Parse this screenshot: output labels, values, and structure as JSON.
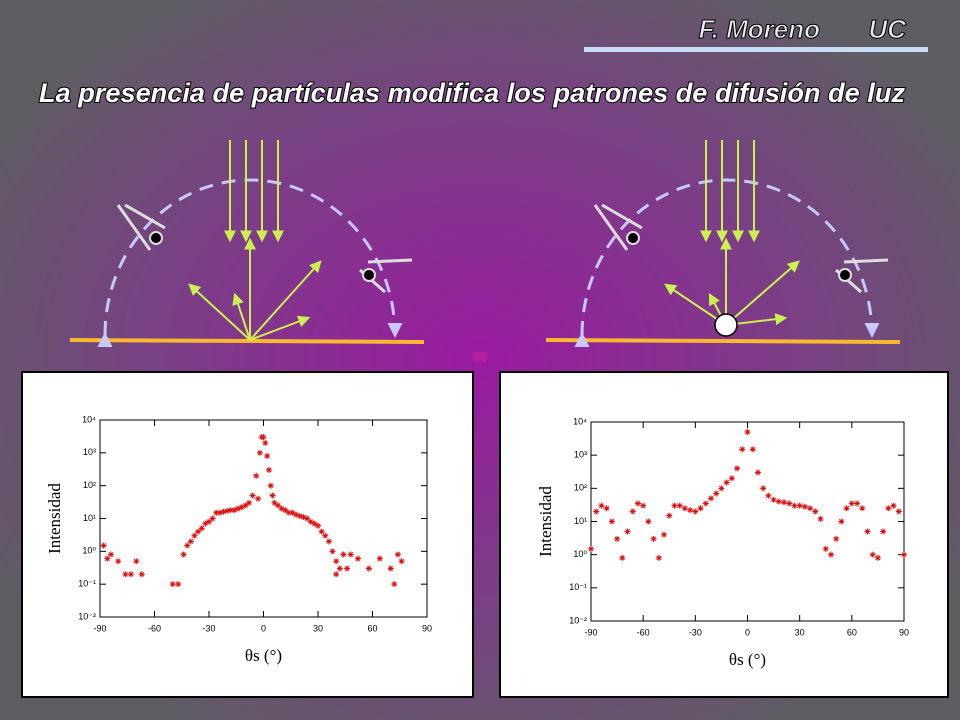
{
  "header": {
    "author": "F. Moreno",
    "institution": "UC",
    "title": "La presencia de partículas modifica los patrones de difusión de luz"
  },
  "chart_data": [
    {
      "type": "scatter",
      "ylabel": "Intensidad",
      "xlabel": "θs (°)",
      "color": "#e01010",
      "yscale": "log",
      "xlim": [
        -90,
        90
      ],
      "ylim": [
        0.01,
        10000
      ],
      "xticks": [
        -90,
        -60,
        -30,
        0,
        30,
        60,
        90
      ],
      "yticks": [
        {
          "value": 0.01,
          "label": "10⁻²"
        },
        {
          "value": 0.1,
          "label": "10⁻¹"
        },
        {
          "value": 1,
          "label": "10⁰"
        },
        {
          "value": 10,
          "label": "10¹"
        },
        {
          "value": 100,
          "label": "10²"
        },
        {
          "value": 1000,
          "label": "10³"
        },
        {
          "value": 10000,
          "label": "10⁴"
        }
      ],
      "x": [
        -88,
        -86,
        -84,
        -80,
        -76,
        -73,
        -70,
        -67,
        -50,
        -47,
        -44,
        -42,
        -40,
        -38,
        -36,
        -34,
        -32,
        -30,
        -28,
        -26,
        -24,
        -22,
        -20,
        -18,
        -16,
        -14,
        -12,
        -10,
        -8,
        -6,
        -4,
        -3,
        -2,
        -1,
        0,
        1,
        2,
        3,
        4,
        5,
        6,
        8,
        10,
        12,
        14,
        16,
        18,
        20,
        22,
        24,
        26,
        28,
        30,
        32,
        34,
        36,
        38,
        40,
        40,
        42,
        44,
        46,
        48,
        52,
        58,
        64,
        70,
        72,
        74,
        76
      ],
      "values": [
        1.5,
        0.6,
        0.8,
        0.5,
        0.2,
        0.2,
        0.5,
        0.2,
        0.1,
        0.1,
        0.8,
        1.5,
        2,
        3,
        4,
        5,
        7,
        8,
        10,
        15,
        15,
        16,
        17,
        18,
        18,
        20,
        22,
        25,
        30,
        50,
        200,
        40,
        1000,
        3000,
        3000,
        2000,
        800,
        300,
        100,
        50,
        30,
        25,
        20,
        18,
        15,
        15,
        13,
        12,
        11,
        10,
        8,
        7,
        6,
        4,
        3,
        2,
        1,
        0.5,
        0.2,
        0.3,
        0.8,
        0.3,
        0.8,
        0.6,
        0.3,
        0.6,
        0.3,
        0.1,
        0.8,
        0.5
      ]
    },
    {
      "type": "scatter",
      "ylabel": "Intensidad",
      "xlabel": "θs (°)",
      "color": "#e01010",
      "yscale": "log",
      "xlim": [
        -90,
        90
      ],
      "ylim": [
        0.01,
        10000
      ],
      "xticks": [
        -90,
        -60,
        -30,
        0,
        30,
        60,
        90
      ],
      "yticks": [
        {
          "value": 0.01,
          "label": "10⁻²"
        },
        {
          "value": 0.1,
          "label": "10⁻¹"
        },
        {
          "value": 1,
          "label": "10⁰"
        },
        {
          "value": 10,
          "label": "10¹"
        },
        {
          "value": 100,
          "label": "10²"
        },
        {
          "value": 1000,
          "label": "10³"
        },
        {
          "value": 10000,
          "label": "10⁴"
        }
      ],
      "x": [
        -90,
        -87,
        -84,
        -81,
        -78,
        -75,
        -72,
        -69,
        -66,
        -63,
        -60,
        -57,
        -54,
        -51,
        -48,
        -45,
        -42,
        -39,
        -36,
        -33,
        -30,
        -27,
        -24,
        -21,
        -18,
        -15,
        -12,
        -9,
        -6,
        -3,
        0,
        3,
        6,
        9,
        12,
        15,
        18,
        21,
        24,
        27,
        30,
        33,
        36,
        39,
        42,
        45,
        48,
        51,
        54,
        57,
        60,
        63,
        66,
        69,
        72,
        75,
        78,
        81,
        84,
        87,
        90
      ],
      "values": [
        1.5,
        20,
        30,
        25,
        10,
        3,
        0.8,
        5,
        20,
        35,
        30,
        10,
        3,
        0.8,
        4,
        15,
        30,
        30,
        25,
        22,
        20,
        25,
        35,
        50,
        70,
        100,
        150,
        200,
        400,
        1500,
        5000,
        1500,
        300,
        100,
        60,
        45,
        40,
        38,
        35,
        30,
        30,
        28,
        25,
        20,
        12,
        1.5,
        1,
        3,
        10,
        25,
        35,
        35,
        25,
        5,
        1,
        0.8,
        5,
        25,
        30,
        20,
        1
      ]
    }
  ]
}
